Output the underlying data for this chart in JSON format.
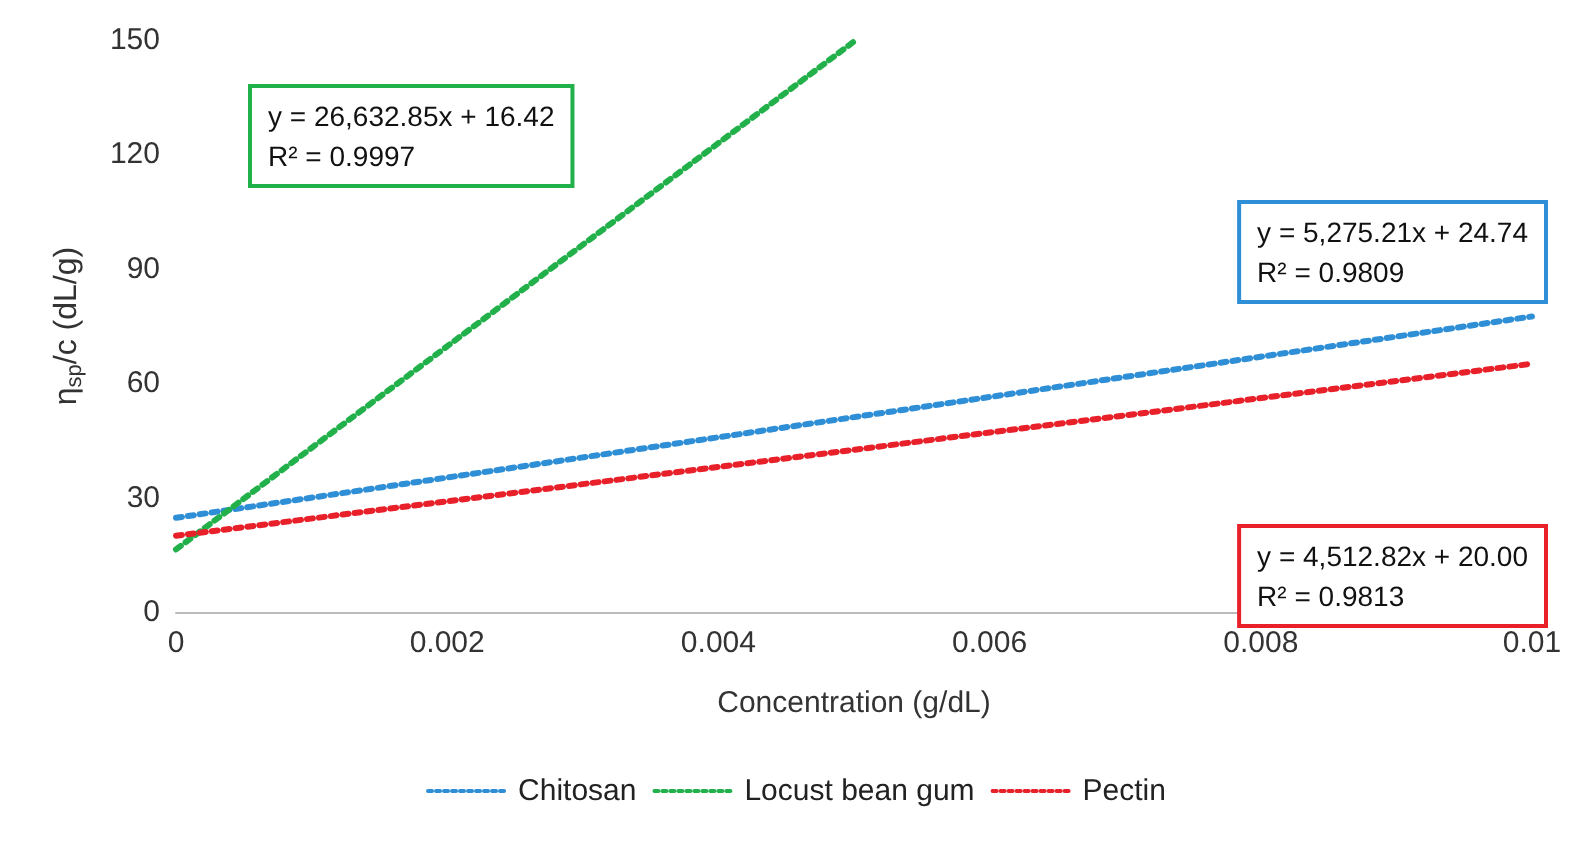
{
  "chart_data": {
    "type": "line",
    "xlabel": "Concentration (g/dL)",
    "ylabel": "η$_{sp}$/c (dL/g)",
    "xlim": [
      0,
      0.01
    ],
    "xticks": [
      0,
      0.002,
      0.004,
      0.006,
      0.008,
      0.01
    ],
    "ylim": [
      0,
      150
    ],
    "yticks": [
      0,
      30,
      60,
      90,
      120,
      150
    ],
    "series": [
      {
        "name": "Chitosan",
        "color": "#2e8fd6",
        "x": [
          0,
          0.01
        ],
        "values": [
          24.7,
          77.5
        ]
      },
      {
        "name": "Locust bean gum",
        "color": "#22b04b",
        "x": [
          0,
          0.005
        ],
        "values": [
          16.4,
          149.6
        ]
      },
      {
        "name": "Pectin",
        "color": "#e8202a",
        "x": [
          0,
          0.01
        ],
        "values": [
          20.0,
          65.1
        ]
      }
    ],
    "annotations": [
      "y = 5,275.21x + 24.74\nR² = 0.9809",
      "y = 26,632.85x + 16.42\nR² = 0.9997",
      "y = 4,512.82x + 20.00\nR² = 0.9813"
    ],
    "grid": false,
    "legend": "bottom",
    "marker": "none",
    "line_style": "dotted"
  }
}
